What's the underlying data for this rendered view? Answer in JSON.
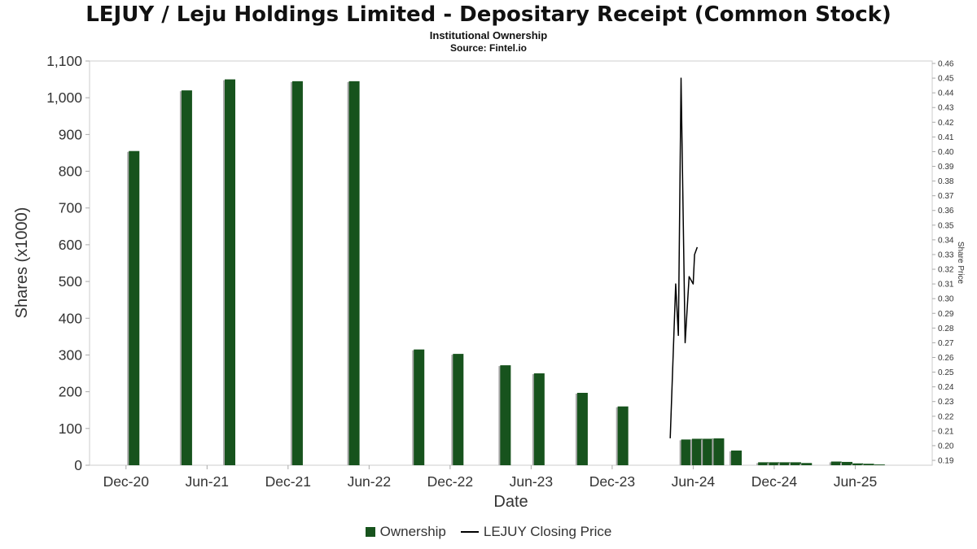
{
  "chart_data": {
    "type": "bar",
    "title": "LEJUY / Leju Holdings Limited - Depositary Receipt (Common Stock)",
    "subtitle": "Institutional Ownership",
    "source": "Source: Fintel.io",
    "xlabel": "Date",
    "ylabel": "Shares (x1000)",
    "ylabel_right": "Share Price",
    "legend": [
      "Ownership",
      "LEJUY Closing Price"
    ],
    "x_tick_months": [
      0,
      6,
      12,
      18,
      24,
      30,
      36,
      42,
      48,
      54
    ],
    "x_tick_labels": [
      "Dec-20",
      "Jun-21",
      "Dec-21",
      "Jun-22",
      "Dec-22",
      "Jun-23",
      "Dec-23",
      "Jun-24",
      "Dec-24",
      "Jun-25"
    ],
    "y_left": {
      "min": 0,
      "max": 1100,
      "step": 100
    },
    "y_right": {
      "min": 0.19,
      "max": 0.46,
      "step": 0.01
    },
    "ownership_bars": [
      {
        "month": 0.6,
        "shares_k": 855
      },
      {
        "month": 4.5,
        "shares_k": 1020
      },
      {
        "month": 7.7,
        "shares_k": 1050
      },
      {
        "month": 12.7,
        "shares_k": 1045
      },
      {
        "month": 16.9,
        "shares_k": 1045
      },
      {
        "month": 21.7,
        "shares_k": 315
      },
      {
        "month": 24.6,
        "shares_k": 303
      },
      {
        "month": 28.1,
        "shares_k": 272
      },
      {
        "month": 30.6,
        "shares_k": 250
      },
      {
        "month": 33.8,
        "shares_k": 197
      },
      {
        "month": 36.8,
        "shares_k": 160
      },
      {
        "month": 41.5,
        "shares_k": 70
      },
      {
        "month": 42.3,
        "shares_k": 72
      },
      {
        "month": 43.1,
        "shares_k": 72
      },
      {
        "month": 43.9,
        "shares_k": 73
      },
      {
        "month": 45.2,
        "shares_k": 40
      },
      {
        "month": 47.2,
        "shares_k": 8
      },
      {
        "month": 48.0,
        "shares_k": 8
      },
      {
        "month": 48.8,
        "shares_k": 8
      },
      {
        "month": 49.6,
        "shares_k": 8
      },
      {
        "month": 50.4,
        "shares_k": 6
      },
      {
        "month": 52.6,
        "shares_k": 10
      },
      {
        "month": 53.4,
        "shares_k": 9
      },
      {
        "month": 54.2,
        "shares_k": 5
      },
      {
        "month": 55.0,
        "shares_k": 4
      },
      {
        "month": 55.8,
        "shares_k": 2
      }
    ],
    "closing_price_line": [
      {
        "month": 40.3,
        "price": 0.205
      },
      {
        "month": 40.7,
        "price": 0.31
      },
      {
        "month": 40.9,
        "price": 0.275
      },
      {
        "month": 41.1,
        "price": 0.45
      },
      {
        "month": 41.4,
        "price": 0.27
      },
      {
        "month": 41.7,
        "price": 0.315
      },
      {
        "month": 42.0,
        "price": 0.31
      },
      {
        "month": 42.1,
        "price": 0.33
      },
      {
        "month": 42.3,
        "price": 0.335
      }
    ],
    "colors": {
      "bar": "#17531d",
      "bar_shadow": "#aaaaaa",
      "line": "#000000",
      "border": "#cccccc",
      "tick_text": "#333333"
    }
  }
}
